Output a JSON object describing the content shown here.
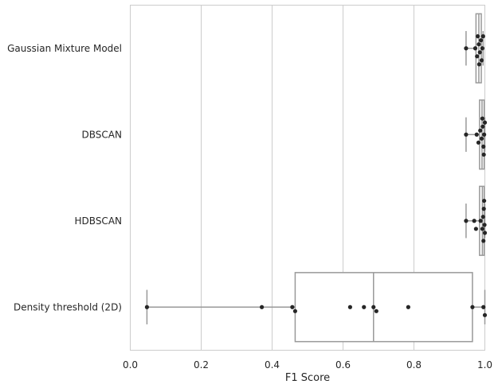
{
  "chart_data": {
    "type": "box",
    "orientation": "horizontal",
    "xlabel": "F1 Score",
    "ylabel": "",
    "title": "",
    "xlim": [
      0.0,
      1.0
    ],
    "xticks": [
      "0.0",
      "0.2",
      "0.4",
      "0.6",
      "0.8",
      "1.0"
    ],
    "grid": "vertical",
    "categories": [
      "Gaussian Mixture Model",
      "DBSCAN",
      "HDBSCAN",
      "Density threshold (2D)"
    ],
    "boxes": [
      {
        "category": "Gaussian Mixture Model",
        "whislo": 0.947,
        "q1": 0.975,
        "med": 0.983,
        "q3": 0.99,
        "whishi": 0.995
      },
      {
        "category": "DBSCAN",
        "whislo": 0.947,
        "q1": 0.985,
        "med": 0.992,
        "q3": 0.998,
        "whishi": 1.0
      },
      {
        "category": "HDBSCAN",
        "whislo": 0.947,
        "q1": 0.985,
        "med": 0.993,
        "q3": 0.998,
        "whishi": 1.0
      },
      {
        "category": "Density threshold (2D)",
        "whislo": 0.047,
        "q1": 0.465,
        "med": 0.686,
        "q3": 0.965,
        "whishi": 1.0
      }
    ],
    "points": [
      [
        0.947,
        0.973,
        0.978,
        0.983,
        0.986,
        0.989,
        0.991,
        0.993,
        0.995,
        0.98,
        0.984
      ],
      [
        0.947,
        0.977,
        0.982,
        0.987,
        0.991,
        0.994,
        0.996,
        0.998,
        1.0,
        0.993,
        0.997
      ],
      [
        0.947,
        0.97,
        0.975,
        0.988,
        0.993,
        0.995,
        0.997,
        0.999,
        1.0,
        0.996,
        0.998
      ],
      [
        0.047,
        0.371,
        0.457,
        0.465,
        0.62,
        0.659,
        0.686,
        0.694,
        0.784,
        0.965,
        0.996,
        1.0
      ]
    ],
    "colors": {
      "box_edge": "#999999",
      "box_face": "#ffffff",
      "point": "#262626",
      "grid": "#cccccc",
      "spine": "#cccccc"
    }
  }
}
